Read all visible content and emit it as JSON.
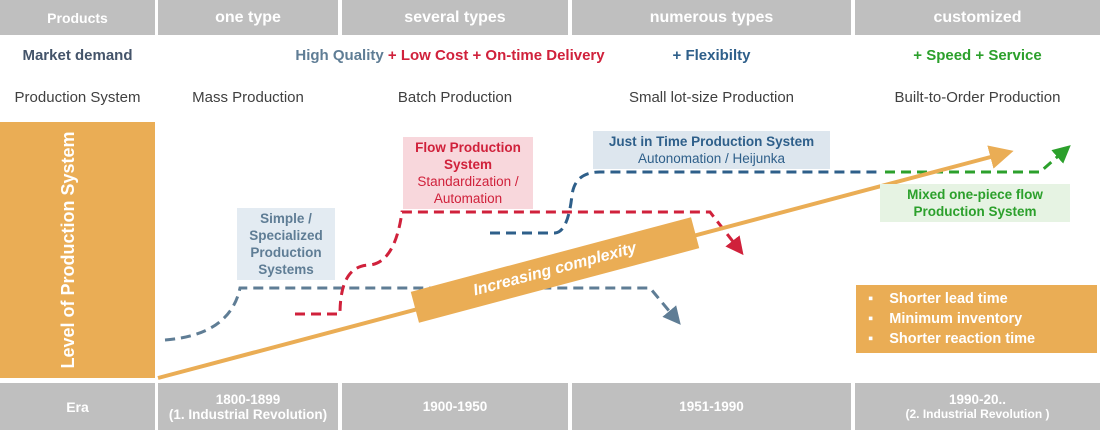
{
  "header": {
    "label": "Products",
    "columns": [
      "one type",
      "several types",
      "numerous types",
      "customized"
    ]
  },
  "market_demand": {
    "label": "Market demand",
    "parts": [
      "High Quality",
      "+ Low Cost + On-time Delivery",
      "+ Flexibilty",
      "+ Speed + Service"
    ]
  },
  "production_system": {
    "label": "Production System",
    "columns": [
      "Mass Production",
      "Batch Production",
      "Small lot-size Production",
      "Built-to-Order Production"
    ]
  },
  "y_axis_label": "Level of Production System",
  "boxes": [
    {
      "title": "Simple / Specialized Production Systems"
    },
    {
      "title": "Flow Production System",
      "subtitle": "Standardization / Automation"
    },
    {
      "title": "Just in Time Production System",
      "subtitle": "Autonomation / Heijunka"
    },
    {
      "title": "Mixed one-piece flow Production System"
    }
  ],
  "arrow_label": "Increasing complexity",
  "benefits": [
    "Shorter lead time",
    "Minimum inventory",
    "Shorter reaction time"
  ],
  "era": {
    "label": "Era",
    "columns": [
      {
        "years": "1800-1899",
        "note": "(1. Industrial Revolution)"
      },
      {
        "years": "1900-1950"
      },
      {
        "years": "1951-1990"
      },
      {
        "years": "1990-20..",
        "note": "(2. Industrial Revolution )"
      }
    ]
  }
}
